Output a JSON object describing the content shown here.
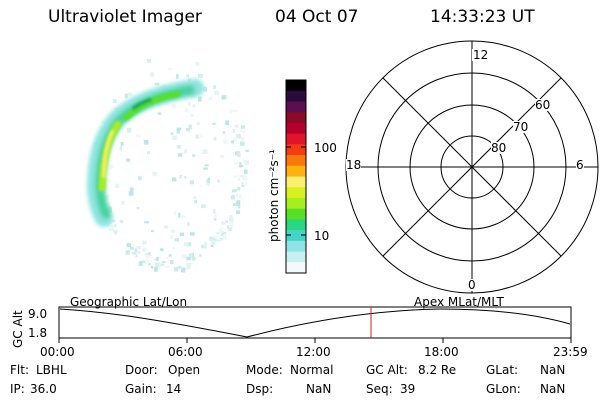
{
  "header": {
    "instrument": "Ultraviolet Imager",
    "date": "04 Oct 07",
    "time": "14:33:23 UT"
  },
  "colorbar": {
    "label": "photon cm⁻²s⁻¹",
    "ticks": [
      "100",
      "10"
    ],
    "colors": [
      "#000000",
      "#2a0a3a",
      "#5a1050",
      "#8a0a28",
      "#b4002a",
      "#e0142a",
      "#f23c14",
      "#f8780c",
      "#fdb20e",
      "#faf070",
      "#d8f020",
      "#a6ee1c",
      "#58e028",
      "#2ad680",
      "#46d4c8",
      "#8ce4e4",
      "#c8f0f0",
      "#f2fafa"
    ]
  },
  "polar_grid": {
    "mlt_labels": [
      "12",
      "18",
      "6",
      "0"
    ],
    "lat_labels": [
      "60",
      "70",
      "80"
    ],
    "line_color": "#000000"
  },
  "altitude_track": {
    "axis_label": "GC Alt",
    "y_ticks": [
      "9.0",
      "1.8"
    ],
    "left_title": "Geographic Lat/Lon",
    "right_title": "Apex MLat/MLT",
    "time_ticks": [
      "00:00",
      "06:00",
      "12:00",
      "18:00",
      "23:59"
    ],
    "current_time_marker_color": "#cc2222"
  },
  "footer": {
    "flt_label": "Flt:",
    "flt_value": "LBHL",
    "ip_label": "IP:",
    "ip_value": "36.0",
    "door_label": "Door:",
    "door_value": "Open",
    "gain_label": "Gain:",
    "gain_value": "14",
    "mode_label": "Mode:",
    "mode_value": "Normal",
    "dsp_label": "Dsp:",
    "dsp_value": "NaN",
    "gcalt_label": "GC Alt:",
    "gcalt_value": "8.2 Re",
    "seq_label": "Seq:",
    "seq_value": "39",
    "glat_label": "GLat:",
    "glat_value": "NaN",
    "glon_label": "GLon:",
    "glon_value": "NaN"
  }
}
